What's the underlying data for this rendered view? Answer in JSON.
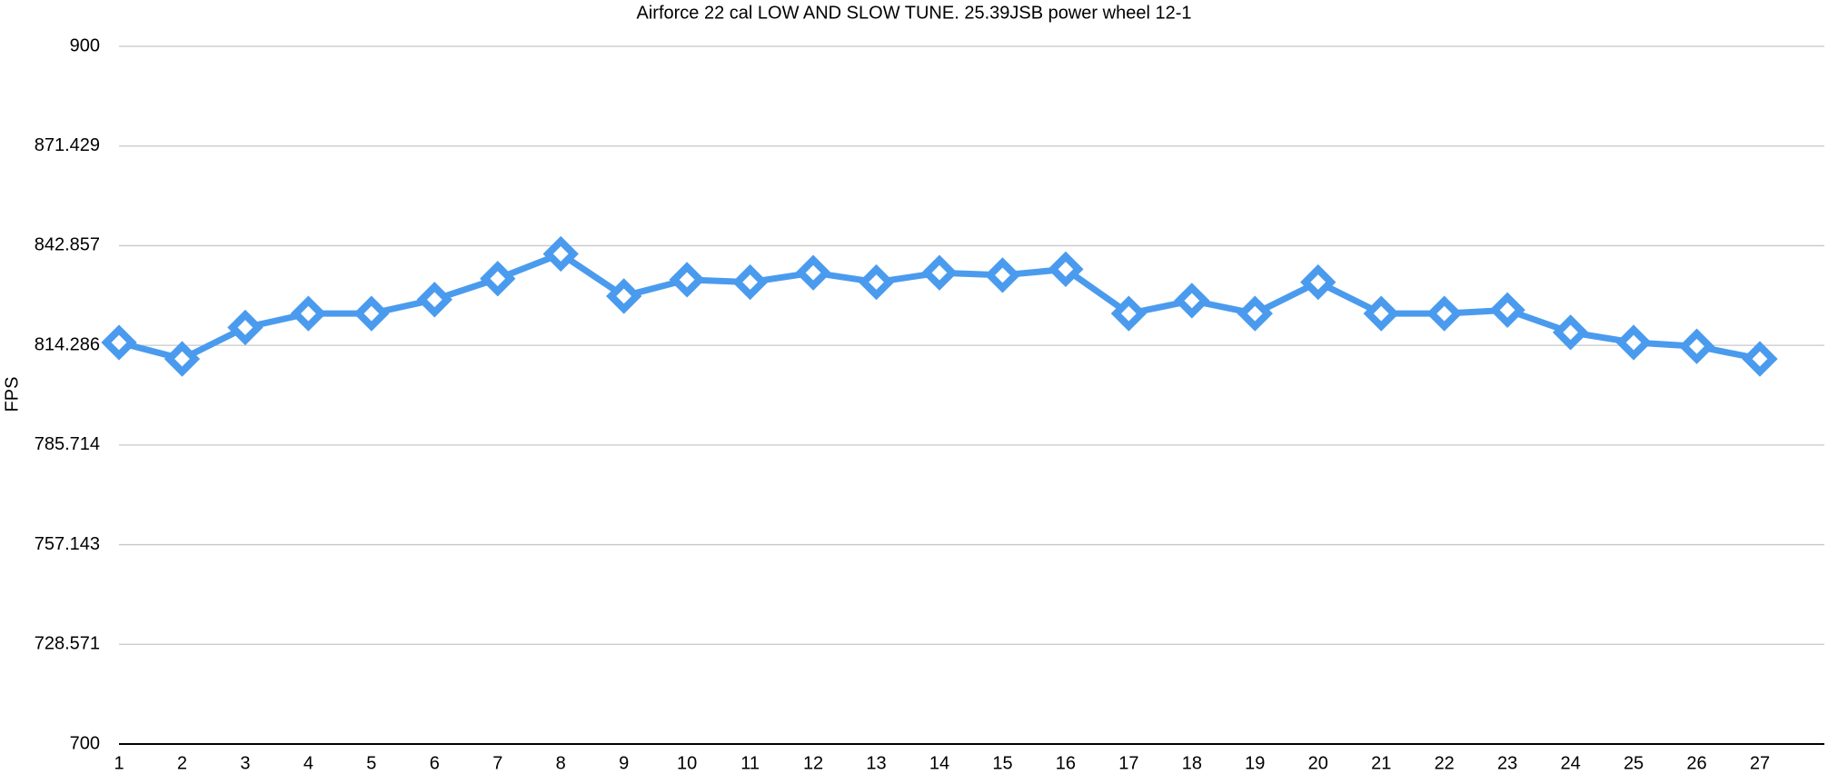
{
  "chart_data": {
    "type": "line",
    "title": "Airforce 22 cal LOW AND SLOW TUNE. 25.39JSB power wheel 12-1",
    "y_label": "FPS",
    "categories": [
      "1",
      "2",
      "3",
      "4",
      "5",
      "6",
      "7",
      "8",
      "9",
      "10",
      "11",
      "12",
      "13",
      "14",
      "15",
      "16",
      "17",
      "18",
      "19",
      "20",
      "21",
      "22",
      "23",
      "24",
      "25",
      "26",
      "27"
    ],
    "series": [
      {
        "name": "FPS",
        "color": "#4a9bee",
        "values": [
          815.1,
          810.4,
          819.4,
          823.4,
          823.4,
          827.4,
          833.4,
          840.5,
          828.4,
          833.1,
          832.4,
          835.1,
          832.4,
          835.1,
          834.4,
          836.1,
          823.4,
          827.1,
          823.4,
          832.4,
          823.4,
          823.4,
          824.4,
          818.0,
          815.1,
          814.0,
          810.4
        ]
      }
    ],
    "ylim": [
      700,
      900
    ],
    "yticks": [
      700,
      728.571,
      757.143,
      785.714,
      814.286,
      842.857,
      871.429,
      900
    ],
    "grid": true
  }
}
